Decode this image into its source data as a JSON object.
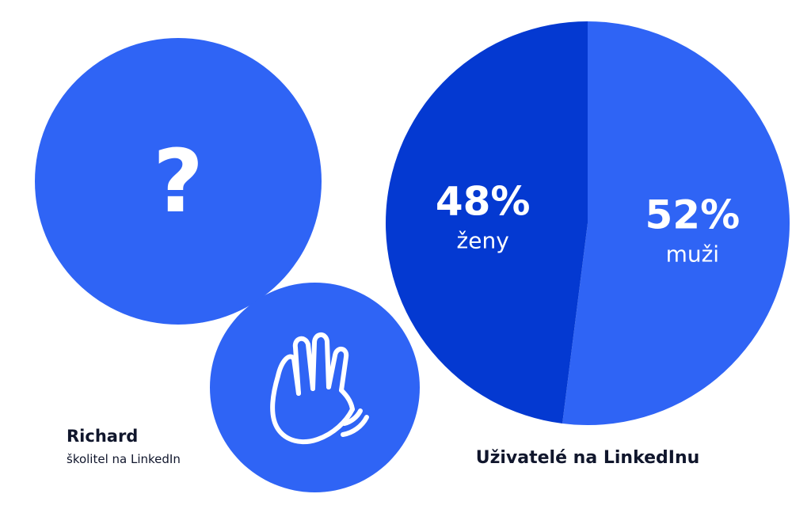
{
  "presenter": {
    "name": "Richard",
    "role": "školitel na LinkedIn"
  },
  "icons": {
    "question": "question-mark-icon",
    "wave": "waving-hand-icon",
    "question_glyph": "?"
  },
  "colors": {
    "circle": "#2f64f5",
    "slice_muzi": "#2f64f5",
    "slice_zeny": "#0439d1",
    "text_dark": "#10162c",
    "text_light": "#ffffff"
  },
  "chart_data": {
    "type": "pie",
    "title": "Uživatelé na LinkedInu",
    "slices": [
      {
        "label": "muži",
        "value": 52,
        "value_label": "52%",
        "color": "#2f64f5"
      },
      {
        "label": "ženy",
        "value": 48,
        "value_label": "48%",
        "color": "#0439d1"
      }
    ]
  }
}
